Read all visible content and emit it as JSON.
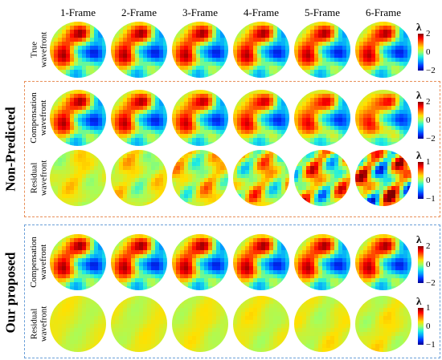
{
  "columns": [
    "1-Frame",
    "2-Frame",
    "3-Frame",
    "4-Frame",
    "5-Frame",
    "6-Frame"
  ],
  "groups": [
    {
      "label": "Non-Predicted",
      "border_color": "#e8905a"
    },
    {
      "label": "Our proposed",
      "border_color": "#6a9fd8"
    }
  ],
  "rows": [
    {
      "label_lines": [
        "True",
        "wavefront"
      ],
      "kind": "wave",
      "variation": [
        0,
        0.02,
        0.04,
        0.06,
        0.08,
        0.1
      ],
      "colorbar": {
        "symbol": "λ",
        "ticks": [
          "2",
          "0",
          "−2"
        ]
      }
    },
    {
      "label_lines": [
        "Compensation",
        "wavefront"
      ],
      "kind": "wave",
      "variation": [
        0.05,
        0.1,
        0.18,
        0.26,
        0.36,
        0.5
      ],
      "colorbar": {
        "symbol": "λ",
        "ticks": [
          "2",
          "0",
          "−2"
        ]
      }
    },
    {
      "label_lines": [
        "Residual",
        "wavefront"
      ],
      "kind": "residual",
      "variation": [
        0.15,
        0.25,
        0.4,
        0.55,
        0.75,
        1.0
      ],
      "colorbar": {
        "symbol": "λ",
        "ticks": [
          "1",
          "0",
          "−1"
        ]
      }
    },
    {
      "label_lines": [
        "Compensation",
        "wavefront"
      ],
      "kind": "wave",
      "variation": [
        0.01,
        0.02,
        0.03,
        0.04,
        0.05,
        0.06
      ],
      "colorbar": {
        "symbol": "λ",
        "ticks": [
          "2",
          "0",
          "−2"
        ]
      }
    },
    {
      "label_lines": [
        "Residual",
        "wavefront"
      ],
      "kind": "residual",
      "variation": [
        0.03,
        0.04,
        0.05,
        0.06,
        0.08,
        0.1
      ],
      "colorbar": {
        "symbol": "λ",
        "ticks": [
          "1",
          "0",
          "−1"
        ]
      }
    }
  ],
  "colormap": [
    "#00008f",
    "#0030ff",
    "#00a0ff",
    "#20f0e0",
    "#a0ff60",
    "#ffe000",
    "#ff7000",
    "#ff0000",
    "#800000"
  ]
}
